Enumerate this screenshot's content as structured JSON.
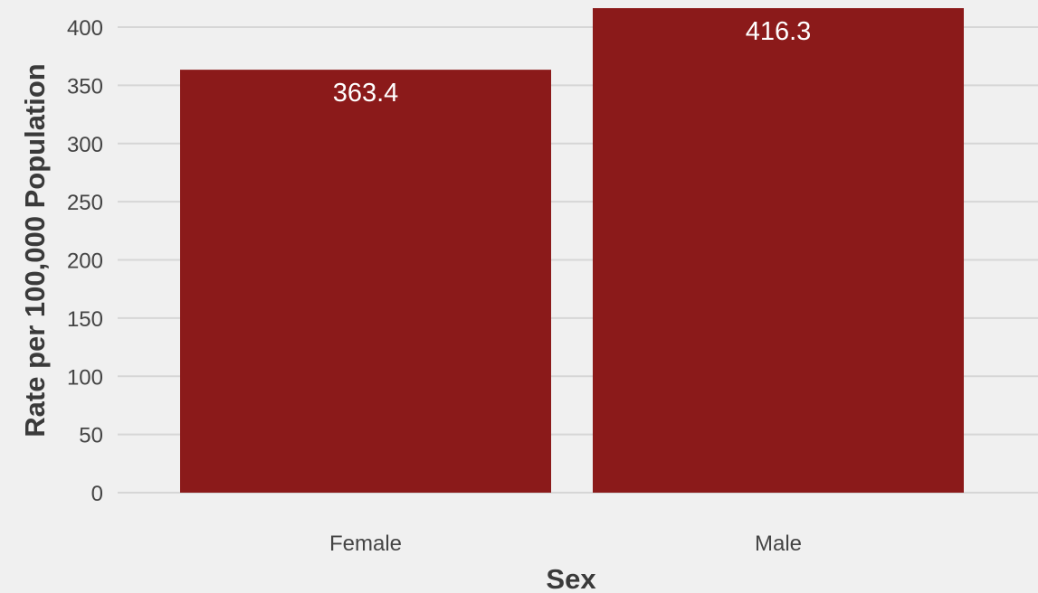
{
  "chart_data": {
    "type": "bar",
    "title": "",
    "xlabel": "Sex",
    "ylabel": "Rate per 100,000 Population",
    "categories": [
      "Female",
      "Male"
    ],
    "values": [
      363.4,
      416.3
    ],
    "data_labels": [
      "363.4",
      "416.3"
    ],
    "ylim": [
      0,
      416.3
    ],
    "yticks": [
      0,
      50,
      100,
      150,
      200,
      250,
      300,
      350,
      400
    ],
    "ytick_labels": [
      "0",
      "50",
      "100",
      "150",
      "200",
      "250",
      "300",
      "350",
      "400"
    ],
    "bar_color": "#8b1a1a",
    "background_color": "#f0f0f0",
    "gridline_color": "#d6d6d6",
    "grid": true,
    "legend": "none"
  }
}
